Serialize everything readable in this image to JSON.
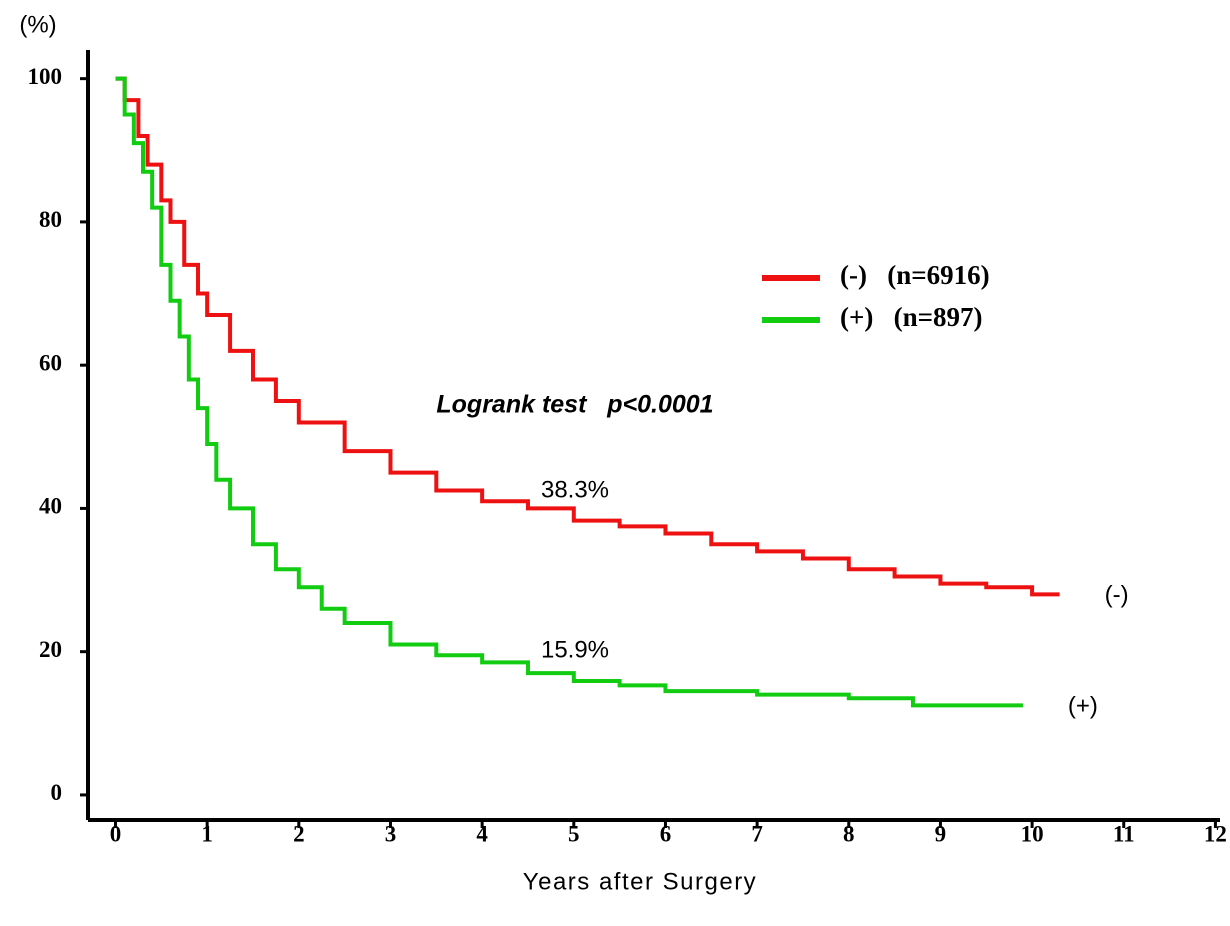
{
  "chart_data": {
    "type": "line",
    "step": "post",
    "y_label": "(%)",
    "x_label": "Years after Surgery",
    "annotations": [
      "Logrank test   p<0.0001",
      "38.3%",
      "15.9%"
    ],
    "xlim": [
      -0.3,
      12.05
    ],
    "ylim": [
      -3.5,
      104
    ],
    "xticks": [
      0,
      1,
      2,
      3,
      4,
      5,
      6,
      7,
      8,
      9,
      10,
      11,
      12
    ],
    "yticks": [
      0,
      20,
      40,
      60,
      80,
      100
    ],
    "legend": "right",
    "series": [
      {
        "name": "(-)   (n=6916)",
        "end_label": "(-)",
        "color": "#ee1111",
        "x": [
          0,
          0.1,
          0.25,
          0.35,
          0.5,
          0.6,
          0.75,
          0.9,
          1.0,
          1.25,
          1.5,
          1.75,
          2.0,
          2.5,
          3.0,
          3.5,
          4.0,
          4.5,
          5.0,
          5.5,
          6.0,
          6.5,
          7.0,
          7.5,
          8.0,
          8.5,
          9.0,
          9.5,
          10.0,
          10.3
        ],
        "values": [
          100,
          97,
          92,
          88,
          83,
          80,
          74,
          70,
          67,
          62,
          58,
          55,
          52,
          48,
          45,
          42.5,
          41,
          40,
          38.3,
          37.5,
          36.5,
          35,
          34,
          33,
          31.5,
          30.5,
          29.5,
          29,
          28,
          28
        ]
      },
      {
        "name": "(+)   (n=897)",
        "end_label": "(+)",
        "color": "#11cc11",
        "x": [
          0,
          0.1,
          0.2,
          0.3,
          0.4,
          0.5,
          0.6,
          0.7,
          0.8,
          0.9,
          1.0,
          1.1,
          1.25,
          1.5,
          1.75,
          2.0,
          2.25,
          2.5,
          3.0,
          3.5,
          4.0,
          4.5,
          5.0,
          5.5,
          6.0,
          7.0,
          8.0,
          8.7,
          9.9
        ],
        "values": [
          100,
          95,
          91,
          87,
          82,
          74,
          69,
          64,
          58,
          54,
          49,
          44,
          40,
          35,
          31.5,
          29,
          26,
          24,
          21,
          19.5,
          18.5,
          17,
          15.9,
          15.3,
          14.5,
          14,
          13.5,
          12.5,
          12.5
        ]
      }
    ]
  }
}
